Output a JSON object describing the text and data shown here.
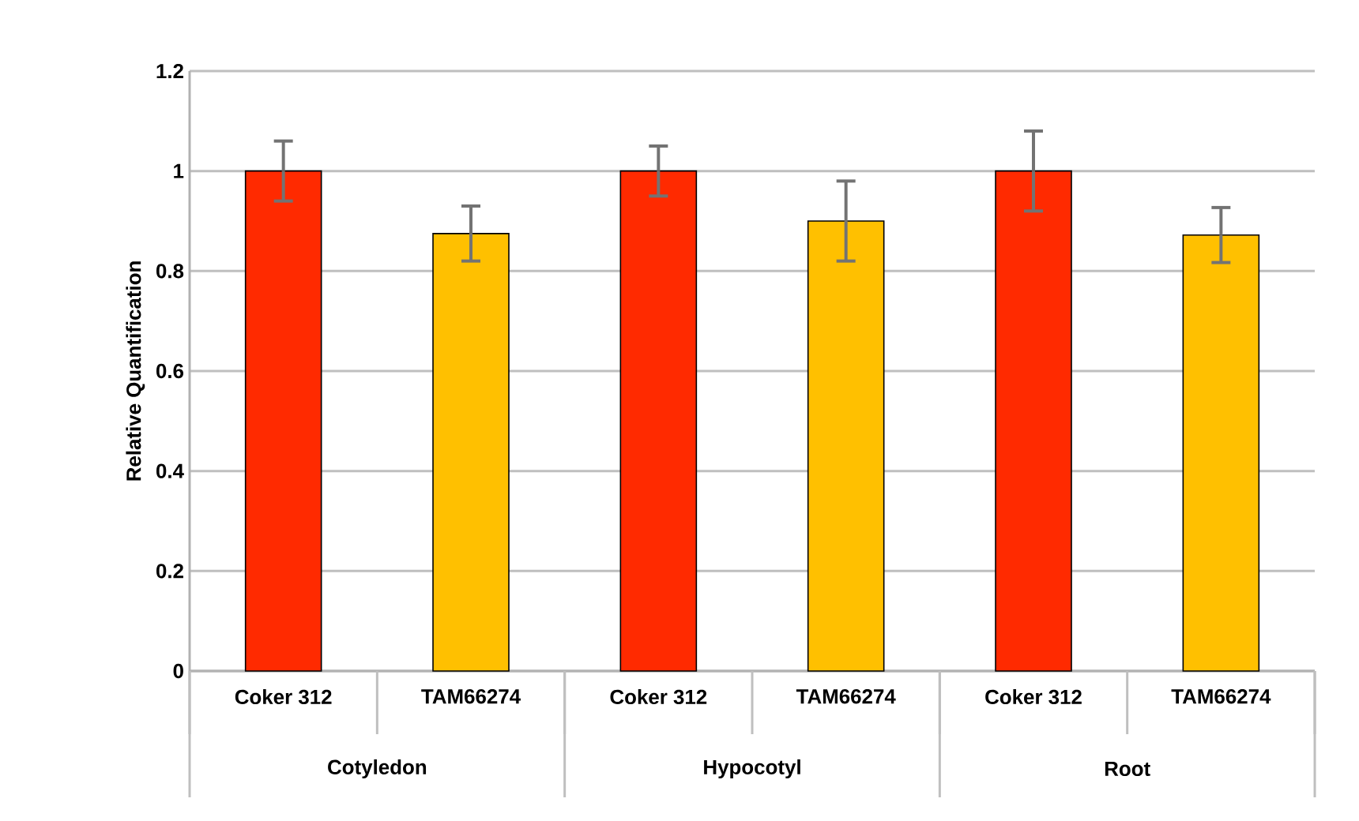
{
  "chart_data": {
    "type": "bar",
    "ylabel": "Relative Quantification",
    "categories": [
      "Coker 312",
      "TAM66274",
      "Coker 312",
      "TAM66274",
      "Coker 312",
      "TAM66274"
    ],
    "values": [
      1,
      0.875,
      1,
      0.9,
      1,
      0.872
    ],
    "errors": [
      0.06,
      0.055,
      0.05,
      0.08,
      0.08,
      0.055
    ],
    "colors": [
      "#ff2a00",
      "#ffc000",
      "#ff2a00",
      "#ffc000",
      "#ff2a00",
      "#ffc000"
    ],
    "annotations": [
      "Cotyledon",
      "Hypocotyl",
      "Root"
    ],
    "ylim": [
      0,
      1.2
    ],
    "yticks": [
      0,
      0.2,
      0.4,
      0.6,
      0.8,
      1,
      1.2
    ],
    "grid": "y"
  }
}
